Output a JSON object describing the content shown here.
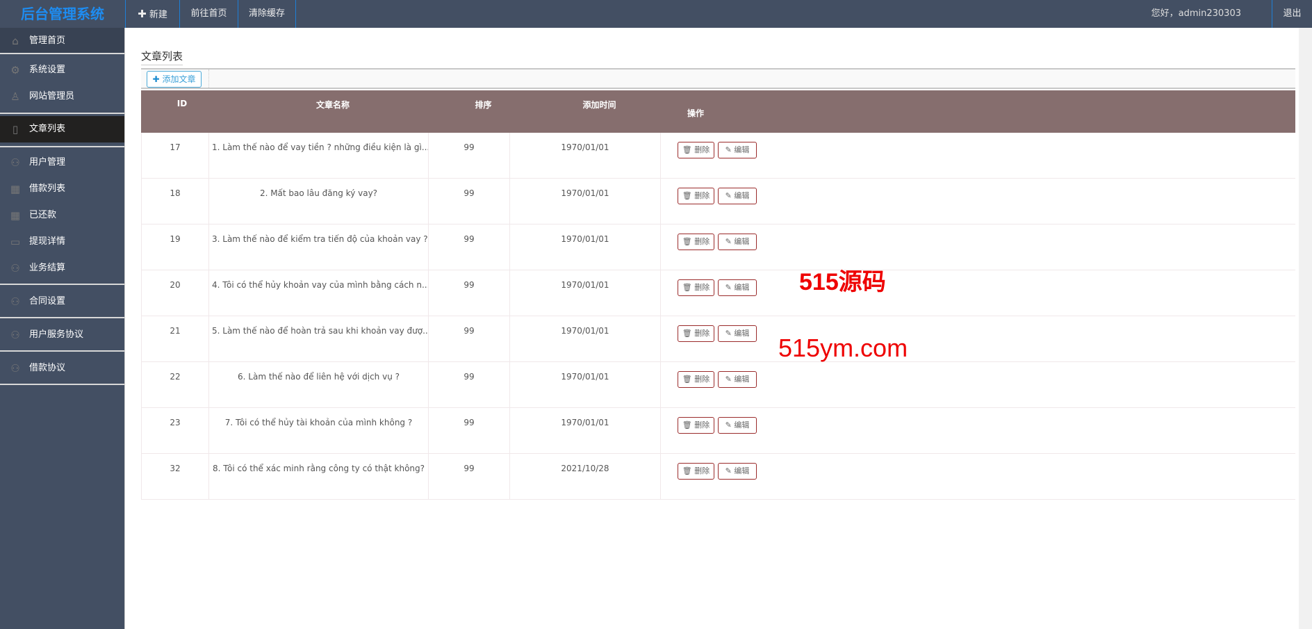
{
  "header": {
    "logo": "后台管理系统",
    "nav": [
      {
        "label": "新建",
        "icon": "plus-icon"
      },
      {
        "label": "前往首页"
      },
      {
        "label": "清除缓存"
      }
    ],
    "greeting": "您好，admin230303",
    "logout": "退出"
  },
  "sidebar": {
    "items": [
      {
        "label": "管理首页",
        "icon": "home-icon"
      },
      {
        "label": "系统设置",
        "icon": "gear-icon"
      },
      {
        "label": "网站管理员",
        "icon": "user-icon"
      },
      {
        "label": "文章列表",
        "icon": "document-icon",
        "active": true
      },
      {
        "label": "用户管理",
        "icon": "users-icon"
      },
      {
        "label": "借款列表",
        "icon": "grid-icon"
      },
      {
        "label": "已还款",
        "icon": "grid-icon"
      },
      {
        "label": "提现详情",
        "icon": "inbox-icon"
      },
      {
        "label": "业务结算",
        "icon": "users-icon"
      },
      {
        "label": "合同设置",
        "icon": "users-icon"
      },
      {
        "label": "用户服务协议",
        "icon": "users-icon"
      },
      {
        "label": "借款协议",
        "icon": "users-icon"
      }
    ]
  },
  "main": {
    "title": "文章列表",
    "add_button": "添加文章",
    "columns": [
      "ID",
      "文章名称",
      "排序",
      "添加时间",
      "操作"
    ],
    "delete_label": "删除",
    "edit_label": "编辑",
    "rows": [
      {
        "id": "17",
        "name": "1. Làm thế nào để vay tiền ? những điều kiện là gì...",
        "sort": "99",
        "time": "1970/01/01"
      },
      {
        "id": "18",
        "name": "2. Mất bao lâu đăng ký vay?",
        "sort": "99",
        "time": "1970/01/01"
      },
      {
        "id": "19",
        "name": "3. Làm thế nào để kiểm tra tiến độ của khoản vay ?",
        "sort": "99",
        "time": "1970/01/01"
      },
      {
        "id": "20",
        "name": "4. Tôi có thể hủy khoản vay của mình bằng cách n...",
        "sort": "99",
        "time": "1970/01/01"
      },
      {
        "id": "21",
        "name": "5. Làm thế nào để hoàn trả sau khi khoản vay đượ...",
        "sort": "99",
        "time": "1970/01/01"
      },
      {
        "id": "22",
        "name": "6. Làm thế nào để liên hệ với dịch vụ ?",
        "sort": "99",
        "time": "1970/01/01"
      },
      {
        "id": "23",
        "name": "7. Tôi có thể hủy tài khoản của mình không ?",
        "sort": "99",
        "time": "1970/01/01"
      },
      {
        "id": "32",
        "name": "8. Tôi có thể xác minh rằng công ty có thật không?",
        "sort": "99",
        "time": "2021/10/28"
      }
    ]
  },
  "watermark": {
    "line1": "515源码",
    "line2": "515ym.com"
  },
  "colors": {
    "header_bg": "#434f63",
    "logo": "#1e8cf0",
    "table_header": "#866e6e",
    "active_item": "#222120",
    "button_border": "#9a2a2a"
  }
}
